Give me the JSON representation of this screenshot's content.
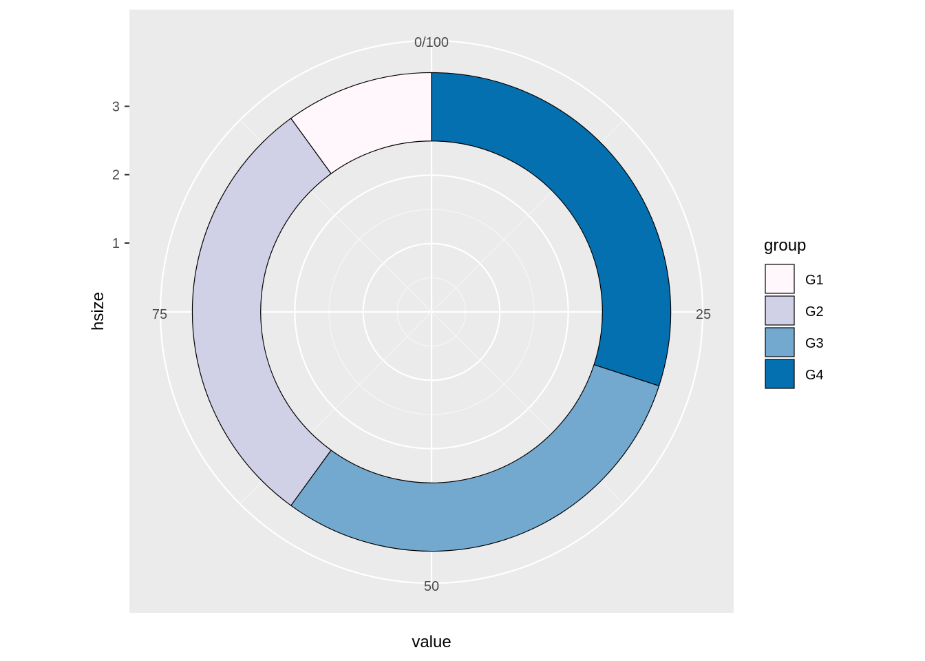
{
  "chart_data": {
    "type": "pie",
    "coord": "polar donut",
    "x_axis_title": "value",
    "y_axis_title": "hsize",
    "theta_axis": {
      "range": [
        0,
        100
      ],
      "ticks": [
        {
          "value": 0,
          "label": "0/100"
        },
        {
          "value": 25,
          "label": "25"
        },
        {
          "value": 50,
          "label": "50"
        },
        {
          "value": 75,
          "label": "75"
        }
      ]
    },
    "radial_axis": {
      "range": [
        0,
        3.5
      ],
      "ticks": [
        {
          "value": 1,
          "label": "1"
        },
        {
          "value": 2,
          "label": "2"
        },
        {
          "value": 3,
          "label": "3"
        }
      ]
    },
    "bar": {
      "xmin": 2.5,
      "xmax": 3.5
    },
    "categories": [
      "G1",
      "G2",
      "G3",
      "G4"
    ],
    "values": [
      10,
      30,
      30,
      30
    ],
    "stack_order": [
      "G4",
      "G3",
      "G2",
      "G1"
    ],
    "colors": {
      "G1": "#fff7fb",
      "G2": "#d0d1e6",
      "G3": "#74a9cf",
      "G4": "#0570b0"
    },
    "legend": {
      "title": "group",
      "position": "right",
      "items": [
        {
          "label": "G1",
          "color": "#fff7fb"
        },
        {
          "label": "G2",
          "color": "#d0d1e6"
        },
        {
          "label": "G3",
          "color": "#74a9cf"
        },
        {
          "label": "G4",
          "color": "#0570b0"
        }
      ]
    },
    "panel_background": "#ebebeb",
    "grid": true
  }
}
